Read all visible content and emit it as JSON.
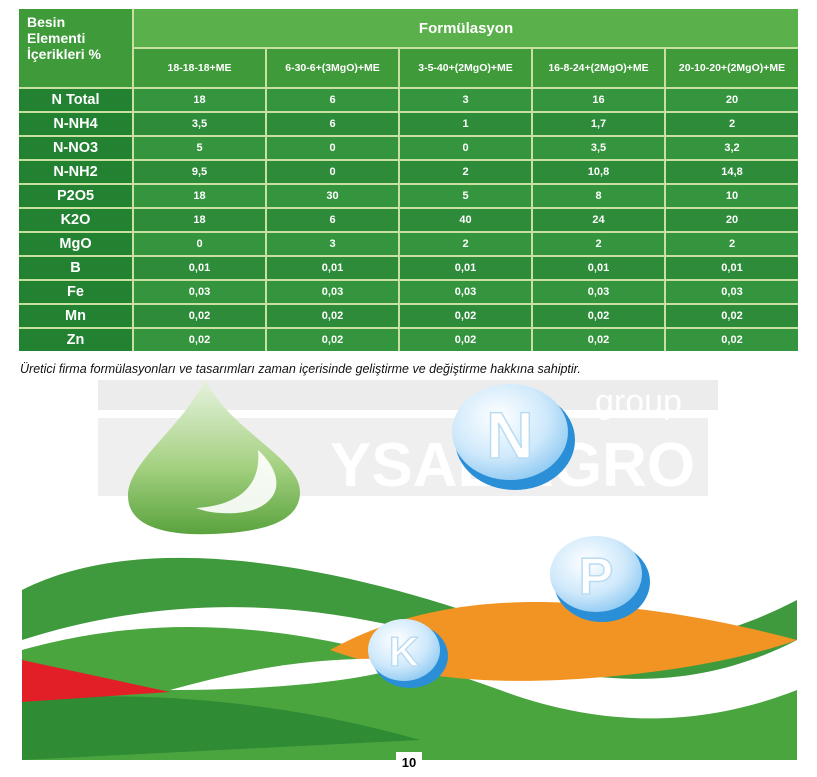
{
  "table": {
    "row_header_label": "Besin\nElementi\nİçerikleri %",
    "formulation_title": "Formülasyon",
    "columns": [
      "18-18-18+ME",
      "6-30-6+(3MgO)+ME",
      "3-5-40+(2MgO)+ME",
      "16-8-24+(2MgO)+ME",
      "20-10-20+(2MgO)+ME"
    ],
    "rows": [
      {
        "label": "N Total",
        "values": [
          "18",
          "6",
          "3",
          "16",
          "20"
        ]
      },
      {
        "label": "N-NH4",
        "values": [
          "3,5",
          "6",
          "1",
          "1,7",
          "2"
        ]
      },
      {
        "label": "N-NO3",
        "values": [
          "5",
          "0",
          "0",
          "3,5",
          "3,2"
        ]
      },
      {
        "label": "N-NH2",
        "values": [
          "9,5",
          "0",
          "2",
          "10,8",
          "14,8"
        ]
      },
      {
        "label": "P2O5",
        "values": [
          "18",
          "30",
          "5",
          "8",
          "10"
        ]
      },
      {
        "label": "K2O",
        "values": [
          "18",
          "6",
          "40",
          "24",
          "20"
        ]
      },
      {
        "label": "MgO",
        "values": [
          "0",
          "3",
          "2",
          "2",
          "2"
        ]
      },
      {
        "label": "B",
        "values": [
          "0,01",
          "0,01",
          "0,01",
          "0,01",
          "0,01"
        ]
      },
      {
        "label": "Fe",
        "values": [
          "0,03",
          "0,03",
          "0,03",
          "0,03",
          "0,03"
        ]
      },
      {
        "label": "Mn",
        "values": [
          "0,02",
          "0,02",
          "0,02",
          "0,02",
          "0,02"
        ]
      },
      {
        "label": "Zn",
        "values": [
          "0,02",
          "0,02",
          "0,02",
          "0,02",
          "0,02"
        ]
      }
    ]
  },
  "note": "Üretici firma formülasyonları ve tasarımları zaman içerisinde geliştirme ve değiştirme hakkına sahiptir.",
  "watermark": {
    "line1": "group",
    "line2": "YSAL AGRO"
  },
  "badges": {
    "n": "N",
    "p": "P",
    "k": "K"
  },
  "page_number": "10",
  "colors": {
    "green_dark": "#238232",
    "green": "#3f9a3a",
    "green_light": "#8cc63e",
    "orange": "#f29423",
    "red": "#e21f26",
    "badge_blue": "#2a8fd6"
  }
}
